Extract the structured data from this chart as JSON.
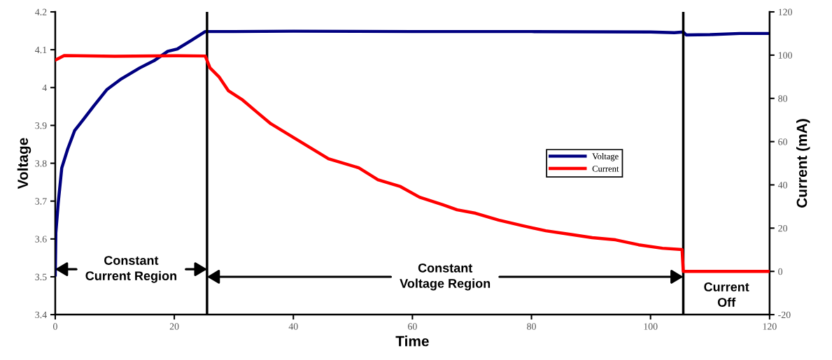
{
  "chart_data": {
    "type": "line",
    "xlabel": "Time",
    "ylabel": "Voltage",
    "y2label": "Current (mA)",
    "xlim": [
      0,
      120
    ],
    "xticks": [
      0,
      20,
      40,
      60,
      80,
      100,
      120
    ],
    "ylim": [
      3.4,
      4.2
    ],
    "yticks": [
      3.4,
      3.5,
      3.6,
      3.7,
      3.8,
      3.9,
      4,
      4.1,
      4.2
    ],
    "y2lim": [
      -20,
      120
    ],
    "y2ticks": [
      -20,
      0,
      20,
      40,
      60,
      80,
      100,
      120
    ],
    "grid": false,
    "legend": "center right",
    "line_style": "solid",
    "marker": "none",
    "series": [
      {
        "name": "Voltage",
        "color": "#000080",
        "x": [
          0,
          0.1,
          0.5,
          1.1,
          2.1,
          3.25,
          4.8,
          6.4,
          8.7,
          11.1,
          14.2,
          16.6,
          18.9,
          20.5,
          22.8,
          25.2,
          30,
          40,
          60,
          80,
          100,
          104,
          105.5,
          106,
          110,
          115,
          120
        ],
        "values": [
          3.505,
          3.616,
          3.695,
          3.788,
          3.838,
          3.886,
          3.917,
          3.95,
          3.995,
          4.023,
          4.052,
          4.071,
          4.096,
          4.102,
          4.124,
          4.148,
          4.148,
          4.149,
          4.148,
          4.148,
          4.147,
          4.145,
          4.147,
          4.139,
          4.14,
          4.143,
          4.143
        ]
      },
      {
        "name": "Current",
        "color": "#ff0000",
        "axis": "y2",
        "x": [
          0,
          1.5,
          10,
          20,
          25.2,
          26,
          27.5,
          29.1,
          31.5,
          33.8,
          36.2,
          40.1,
          45.9,
          51,
          54.2,
          58,
          61.2,
          65.1,
          67.5,
          70.6,
          74.5,
          78.5,
          82.4,
          86.3,
          90.2,
          94.1,
          98,
          102,
          105.3,
          105.5,
          110,
          120
        ],
        "values": [
          97.7,
          99.8,
          99.5,
          99.7,
          99.6,
          94.1,
          90,
          83.5,
          79.2,
          73.8,
          68.3,
          61.8,
          52.1,
          47.9,
          42.4,
          39.2,
          34.3,
          30.8,
          28.5,
          26.9,
          23.7,
          21.1,
          18.8,
          17.2,
          15.6,
          14.6,
          12.3,
          10.7,
          10.1,
          0,
          0,
          0
        ]
      }
    ],
    "ref_lines": [
      {
        "axis": "x",
        "value": 25.5,
        "color": "#000000",
        "line_style": "solid"
      },
      {
        "axis": "x",
        "value": 105.5,
        "color": "#000000",
        "line_style": "solid"
      }
    ],
    "annotations": [
      {
        "text": "Constant\nCurrent Region",
        "x": 25.5,
        "y": 3.52
      },
      {
        "text": "Constant\nVoltage Region",
        "x": 105.5,
        "y": 3.5
      },
      "Current\nOff"
    ]
  }
}
